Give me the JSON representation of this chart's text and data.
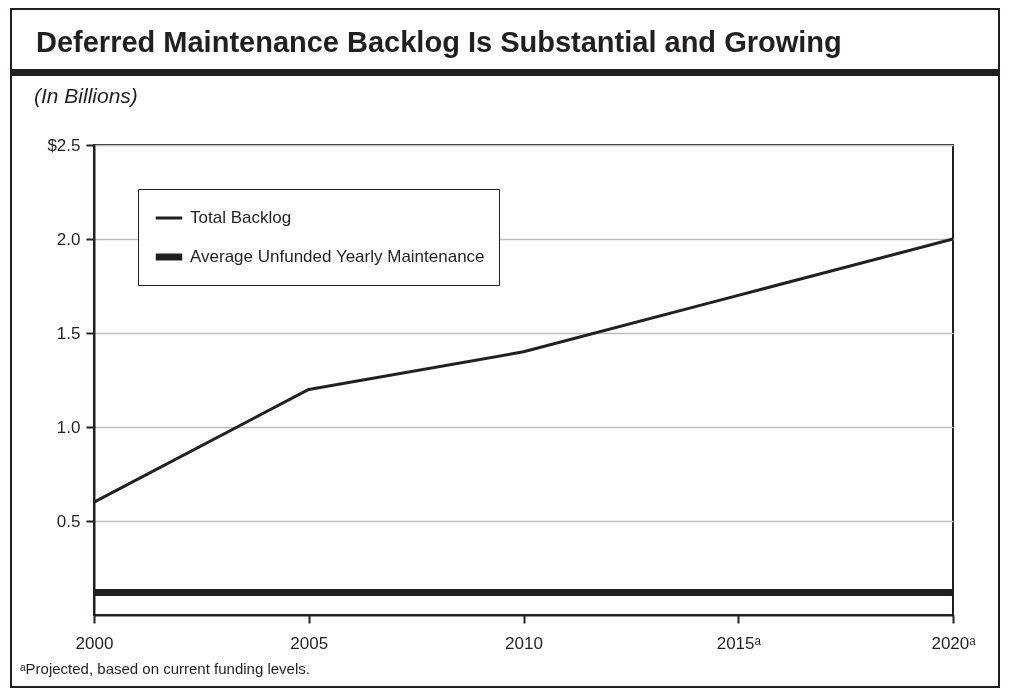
{
  "chart_data": {
    "type": "line",
    "title": "Deferred Maintenance Backlog Is Substantial and Growing",
    "subtitle": "(In Billions)",
    "categories": [
      "2000",
      "2005",
      "2010",
      "2015ᵃ",
      "2020ᵃ"
    ],
    "series": [
      {
        "name": "Total Backlog",
        "color": "#231f20",
        "values": [
          0.6,
          1.2,
          1.4,
          1.7,
          2.0
        ]
      },
      {
        "name": "Average Unfunded Yearly Maintenance",
        "color": "#231f20",
        "values": [
          0.12,
          0.12,
          0.12,
          0.12,
          0.12
        ]
      }
    ],
    "ylim": [
      0,
      2.5
    ],
    "yticks": [
      {
        "value": 0.5,
        "label": "0.5"
      },
      {
        "value": 1.0,
        "label": "1.0"
      },
      {
        "value": 1.5,
        "label": "1.5"
      },
      {
        "value": 2.0,
        "label": "2.0"
      },
      {
        "value": 2.5,
        "label": "$2.5"
      }
    ],
    "grid": "y",
    "legend": "top left",
    "marker": "none",
    "annotations": [
      "ᵃProjected, based on current funding levels."
    ]
  }
}
